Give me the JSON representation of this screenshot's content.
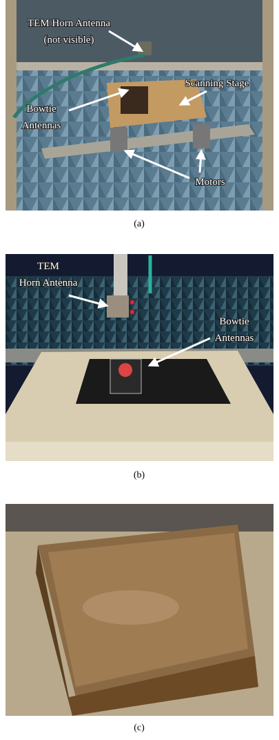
{
  "panels": [
    {
      "caption": "(a)",
      "labels": [
        {
          "lines": [
            "TEM Horn Antenna",
            "(not visible)"
          ]
        },
        {
          "lines": [
            "Scanning Stage"
          ]
        },
        {
          "lines": [
            "Bowtie",
            "Antennas"
          ]
        },
        {
          "lines": [
            "Motors"
          ]
        }
      ]
    },
    {
      "caption": "(b)",
      "labels": [
        {
          "lines": [
            "TEM",
            "Horn Antenna"
          ]
        },
        {
          "lines": [
            "Bowtie",
            "Antennas"
          ]
        }
      ]
    },
    {
      "caption": "(c)",
      "labels": []
    }
  ]
}
